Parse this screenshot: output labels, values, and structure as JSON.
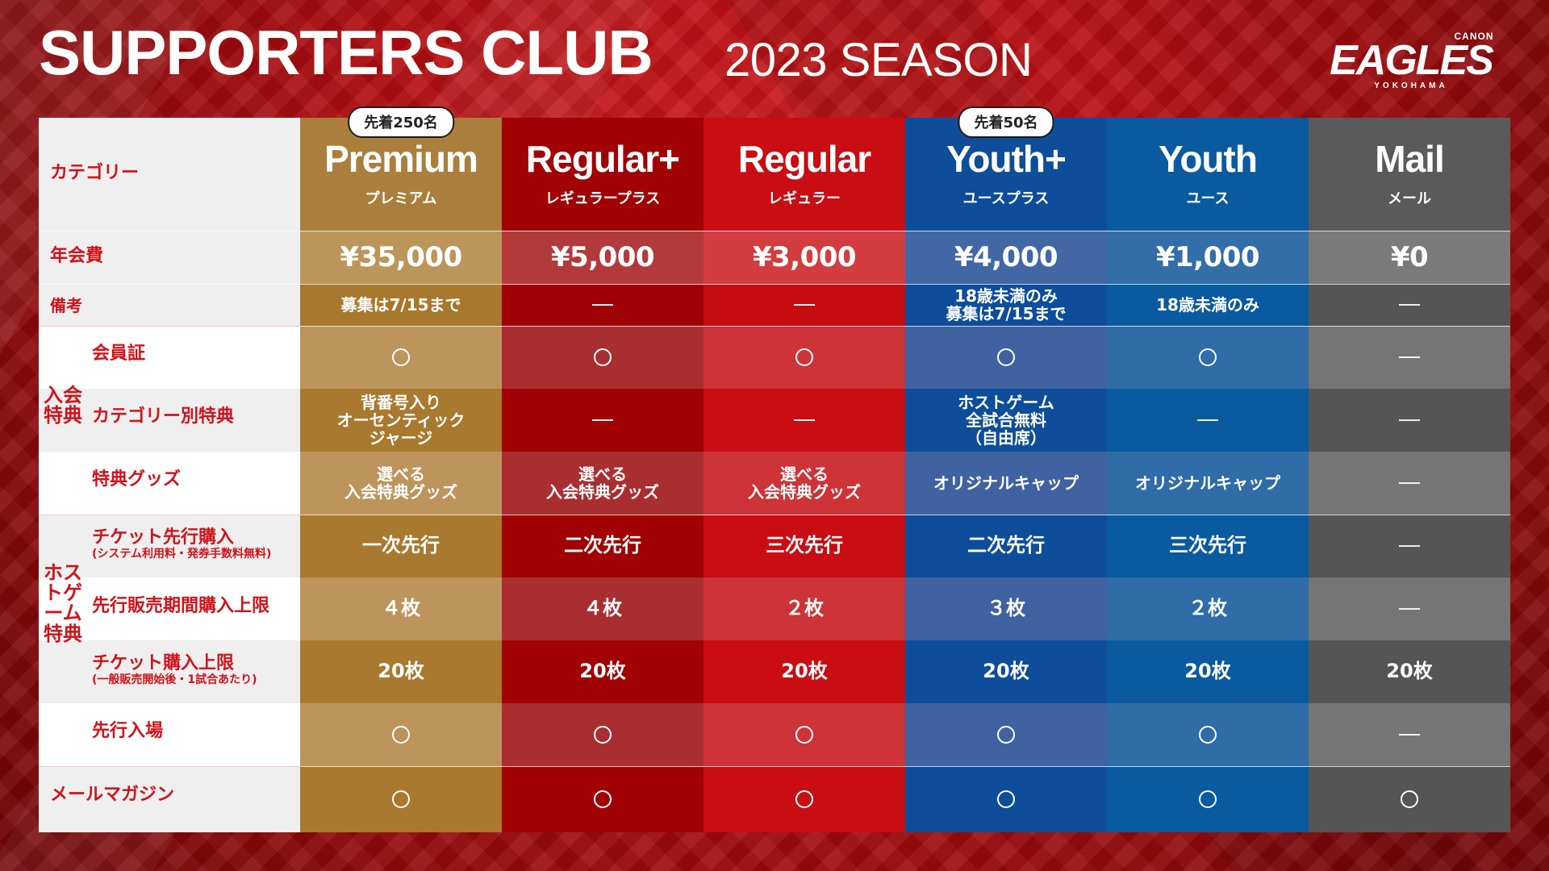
{
  "header": {
    "title": "SUPPORTERS CLUB",
    "season": "2023 SEASON",
    "logo": {
      "brand": "CANON",
      "name": "EAGLES",
      "city": "YOKOHAMA"
    }
  },
  "left": {
    "category": "カテゴリー",
    "annual_fee": "年会費",
    "notes": "備考",
    "join_benefits_group": "入会特典",
    "membership_card": "会員証",
    "category_benefits": "カテゴリー別特典",
    "benefit_goods": "特典グッズ",
    "home_game_group": "ホストゲーム特典",
    "ticket_preorder": "チケット先行購入",
    "ticket_preorder_note": "(システム利用料・発券手数料無料)",
    "presale_limit": "先行販売期間購入上限",
    "ticket_limit": "チケット購入上限",
    "ticket_limit_note": "(一般販売開始後・1試合あたり)",
    "early_entry": "先行入場",
    "mail_magazine": "メールマガジン"
  },
  "plans": [
    {
      "badge": "先着250名",
      "name": "Premium",
      "jp": "プレミアム",
      "fee": "¥35,000",
      "note": "募集は7/15まで",
      "membership_card": "circle",
      "category_benefit": "背番号入り\nオーセンティック\nジャージ",
      "goods": "選べる\n入会特典グッズ",
      "preorder": "一次先行",
      "presale_limit": "４枚",
      "ticket_limit": "20枚",
      "early_entry": "circle",
      "mail": "circle",
      "colors": {
        "header": "#ab7f3b",
        "fee": "#bc955b",
        "note": "#a8782e",
        "alt": "#bd955c",
        "dark": "#a9792f"
      }
    },
    {
      "badge": "",
      "name": "Regular+",
      "jp": "レギュラープラス",
      "fee": "¥5,000",
      "note": "—",
      "membership_card": "circle",
      "category_benefit": "—",
      "goods": "選べる\n入会特典グッズ",
      "preorder": "二次先行",
      "presale_limit": "４枚",
      "ticket_limit": "20枚",
      "early_entry": "circle",
      "mail": "circle",
      "colors": {
        "header": "#a10305",
        "fee": "#b33a3c",
        "note": "#9f0205",
        "alt": "#a92e31",
        "dark": "#a10305"
      }
    },
    {
      "badge": "",
      "name": "Regular",
      "jp": "レギュラー",
      "fee": "¥3,000",
      "note": "—",
      "membership_card": "circle",
      "category_benefit": "—",
      "goods": "選べる\n入会特典グッズ",
      "preorder": "三次先行",
      "presale_limit": "２枚",
      "ticket_limit": "20枚",
      "early_entry": "circle",
      "mail": "circle",
      "colors": {
        "header": "#c90d12",
        "fee": "#d33d40",
        "note": "#c70c11",
        "alt": "#cd3337",
        "dark": "#c90d12"
      }
    },
    {
      "badge": "先着50名",
      "name": "Youth+",
      "jp": "ユースプラス",
      "fee": "¥4,000",
      "note": "18歳未満のみ\n募集は7/15まで",
      "membership_card": "circle",
      "category_benefit": "ホストゲーム\n全試合無料\n（自由席）",
      "goods": "オリジナルキャップ",
      "preorder": "二次先行",
      "presale_limit": "３枚",
      "ticket_limit": "20枚",
      "early_entry": "circle",
      "mail": "circle",
      "colors": {
        "header": "#0d4d9a",
        "fee": "#4267a5",
        "note": "#0d4d9a",
        "alt": "#4062a0",
        "dark": "#0d4d9a"
      }
    },
    {
      "badge": "",
      "name": "Youth",
      "jp": "ユース",
      "fee": "¥1,000",
      "note": "18歳未満のみ",
      "membership_card": "circle",
      "category_benefit": "—",
      "goods": "オリジナルキャップ",
      "preorder": "三次先行",
      "presale_limit": "２枚",
      "ticket_limit": "20枚",
      "early_entry": "circle",
      "mail": "circle",
      "colors": {
        "header": "#0a5aa0",
        "fee": "#336ea8",
        "note": "#0a5aa0",
        "alt": "#2f6ca8",
        "dark": "#0a5aa0"
      }
    },
    {
      "badge": "",
      "name": "Mail",
      "jp": "メール",
      "fee": "¥0",
      "note": "—",
      "membership_card": "—",
      "category_benefit": "—",
      "goods": "—",
      "preorder": "—",
      "presale_limit": "—",
      "ticket_limit": "20枚",
      "early_entry": "—",
      "mail": "circle",
      "colors": {
        "header": "#5a5a5a",
        "fee": "#7b7b7b",
        "note": "#555555",
        "alt": "#757575",
        "dark": "#555555"
      }
    }
  ]
}
